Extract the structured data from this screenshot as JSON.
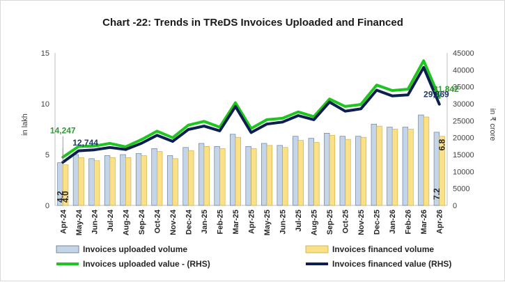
{
  "chart_data": {
    "type": "bar",
    "title": "Chart -22: Trends in TReDS Invoices Uploaded and Financed",
    "ylabel": "in lakh",
    "y2label": "in ₹ crore",
    "ylim": [
      0,
      15
    ],
    "y2lim": [
      0,
      45000
    ],
    "yticks": [
      "0",
      "5",
      "10",
      "15"
    ],
    "y2ticks": [
      "0",
      "5000",
      "10000",
      "15000",
      "20000",
      "25000",
      "30000",
      "35000",
      "40000",
      "45000"
    ],
    "categories": [
      "Apr-24",
      "May-24",
      "Jun-24",
      "Jul-24",
      "Aug-24",
      "Sep-24",
      "Oct-24",
      "Nov-24",
      "Dec-24",
      "Jan-25",
      "Feb-25",
      "Mar-25",
      "Apr-25",
      "May-25",
      "Jun-25",
      "Jul-25",
      "Aug-25",
      "Sep-25",
      "Oct-25",
      "Nov-25",
      "Dec-25",
      "Jan-26",
      "Feb-26",
      "Mar-26",
      "Apr-26"
    ],
    "series": [
      {
        "name": "Invoices uploaded volume",
        "type": "bar",
        "axis": "left",
        "color": "#c5d5e8",
        "values": [
          4.2,
          5.0,
          4.6,
          4.9,
          5.0,
          5.1,
          5.6,
          4.9,
          5.7,
          6.1,
          5.8,
          7.0,
          5.8,
          6.1,
          5.9,
          6.8,
          6.6,
          7.1,
          6.8,
          6.8,
          8.0,
          7.7,
          7.7,
          8.9,
          7.2
        ]
      },
      {
        "name": "Invoices financed volume",
        "type": "bar",
        "axis": "left",
        "color": "#fbe08a",
        "values": [
          4.0,
          4.7,
          4.4,
          4.7,
          4.7,
          4.9,
          5.3,
          4.6,
          5.4,
          5.8,
          5.6,
          6.7,
          5.6,
          5.9,
          5.7,
          6.4,
          6.2,
          6.9,
          6.5,
          6.7,
          7.8,
          7.5,
          7.5,
          8.7,
          6.8
        ]
      },
      {
        "name": "Invoices uploaded value - (RHS)",
        "type": "line",
        "axis": "right",
        "color": "#1ec51e",
        "values": [
          14247,
          17400,
          17500,
          18300,
          17300,
          19400,
          21900,
          20000,
          23700,
          24800,
          23100,
          30300,
          22700,
          25300,
          25700,
          27600,
          26200,
          31400,
          29200,
          29800,
          35500,
          33900,
          34300,
          42700,
          31842
        ]
      },
      {
        "name": "Invoices financed value (RHS)",
        "type": "line",
        "axis": "right",
        "color": "#0c1f4f",
        "values": [
          12744,
          16100,
          16400,
          17100,
          16500,
          18300,
          20700,
          18900,
          22400,
          23400,
          22000,
          29200,
          21500,
          24000,
          24600,
          26500,
          25300,
          30500,
          27800,
          28500,
          34000,
          32300,
          32600,
          40700,
          29869
        ]
      }
    ],
    "annotations": [
      {
        "text": "14,247",
        "series": "Invoices uploaded value - (RHS)",
        "index": 0,
        "color": "#2e9c2e"
      },
      {
        "text": "12,744",
        "series": "Invoices financed value (RHS)",
        "index": 0,
        "color": "#1f3864"
      },
      {
        "text": "31,842",
        "series": "Invoices uploaded value - (RHS)",
        "index": 24,
        "color": "#2e9c2e"
      },
      {
        "text": "29,869",
        "series": "Invoices financed value (RHS)",
        "index": 24,
        "color": "#1f3864"
      },
      {
        "text": "4.2",
        "series": "Invoices uploaded volume",
        "index": 0,
        "color": "#262626"
      },
      {
        "text": "4.0",
        "series": "Invoices financed volume",
        "index": 0,
        "color": "#262626"
      },
      {
        "text": "7.2",
        "series": "Invoices uploaded volume",
        "index": 24,
        "color": "#262626"
      },
      {
        "text": "6.8",
        "series": "Invoices financed volume",
        "index": 24,
        "color": "#262626"
      }
    ],
    "grid": false,
    "legend": "bottom"
  }
}
